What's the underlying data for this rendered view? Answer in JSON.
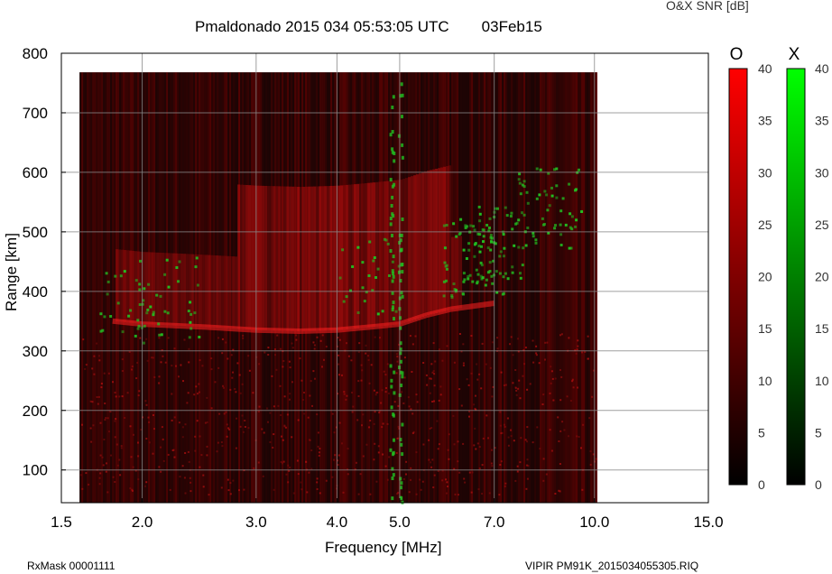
{
  "header": {
    "title": "Pmaldonado 2015 034 05:53:05 UTC",
    "date": "03Feb15",
    "colorbar_title": "O&X SNR [dB]"
  },
  "footer": {
    "mask": "RxMask 00001111",
    "file": "VIPIR  PM91K_2015034055305.RIQ"
  },
  "chart_data": {
    "type": "heatmap",
    "title": "Pmaldonado 2015 034 05:53:05 UTC",
    "xlabel": "Frequency [MHz]",
    "ylabel": "Range [km]",
    "xscale": "log",
    "xlim": [
      1.5,
      15.0
    ],
    "ylim": [
      45,
      800
    ],
    "x_ticks": [
      "1.5",
      "2.0",
      "3.0",
      "4.0",
      "5.0",
      "7.0",
      "10.0",
      "15.0"
    ],
    "x_tick_values": [
      1.5,
      2.0,
      3.0,
      4.0,
      5.0,
      7.0,
      10.0,
      15.0
    ],
    "y_ticks": [
      "100",
      "200",
      "300",
      "400",
      "500",
      "600",
      "700",
      "800"
    ],
    "y_tick_values": [
      100,
      200,
      300,
      400,
      500,
      600,
      700,
      800
    ],
    "data_extent": {
      "freq_mhz": [
        1.6,
        10.1
      ],
      "range_km": [
        45,
        768
      ]
    },
    "grid": true,
    "colorbars": [
      {
        "name": "O",
        "color": "#ff0000",
        "range": [
          0,
          40
        ],
        "ticks": [
          "0",
          "5",
          "10",
          "15",
          "20",
          "25",
          "30",
          "35",
          "40"
        ]
      },
      {
        "name": "X",
        "color": "#00ff00",
        "range": [
          0,
          40
        ],
        "ticks": [
          "0",
          "5",
          "10",
          "15",
          "20",
          "25",
          "30",
          "35",
          "40"
        ]
      }
    ],
    "o_trace": [
      {
        "freq_mhz": 1.8,
        "range_km": 350
      },
      {
        "freq_mhz": 2.0,
        "range_km": 345
      },
      {
        "freq_mhz": 2.5,
        "range_km": 340
      },
      {
        "freq_mhz": 3.0,
        "range_km": 335
      },
      {
        "freq_mhz": 3.5,
        "range_km": 333
      },
      {
        "freq_mhz": 4.0,
        "range_km": 335
      },
      {
        "freq_mhz": 4.5,
        "range_km": 340
      },
      {
        "freq_mhz": 5.0,
        "range_km": 345
      },
      {
        "freq_mhz": 5.5,
        "range_km": 360
      },
      {
        "freq_mhz": 6.0,
        "range_km": 370
      },
      {
        "freq_mhz": 7.0,
        "range_km": 380
      }
    ],
    "x_trace": [
      {
        "freq_mhz": 1.9,
        "range_km": 370
      },
      {
        "freq_mhz": 2.2,
        "range_km": 390
      },
      {
        "freq_mhz": 4.5,
        "range_km": 430
      },
      {
        "freq_mhz": 6.5,
        "range_km": 460
      },
      {
        "freq_mhz": 7.0,
        "range_km": 480
      },
      {
        "freq_mhz": 8.5,
        "range_km": 540
      }
    ]
  }
}
